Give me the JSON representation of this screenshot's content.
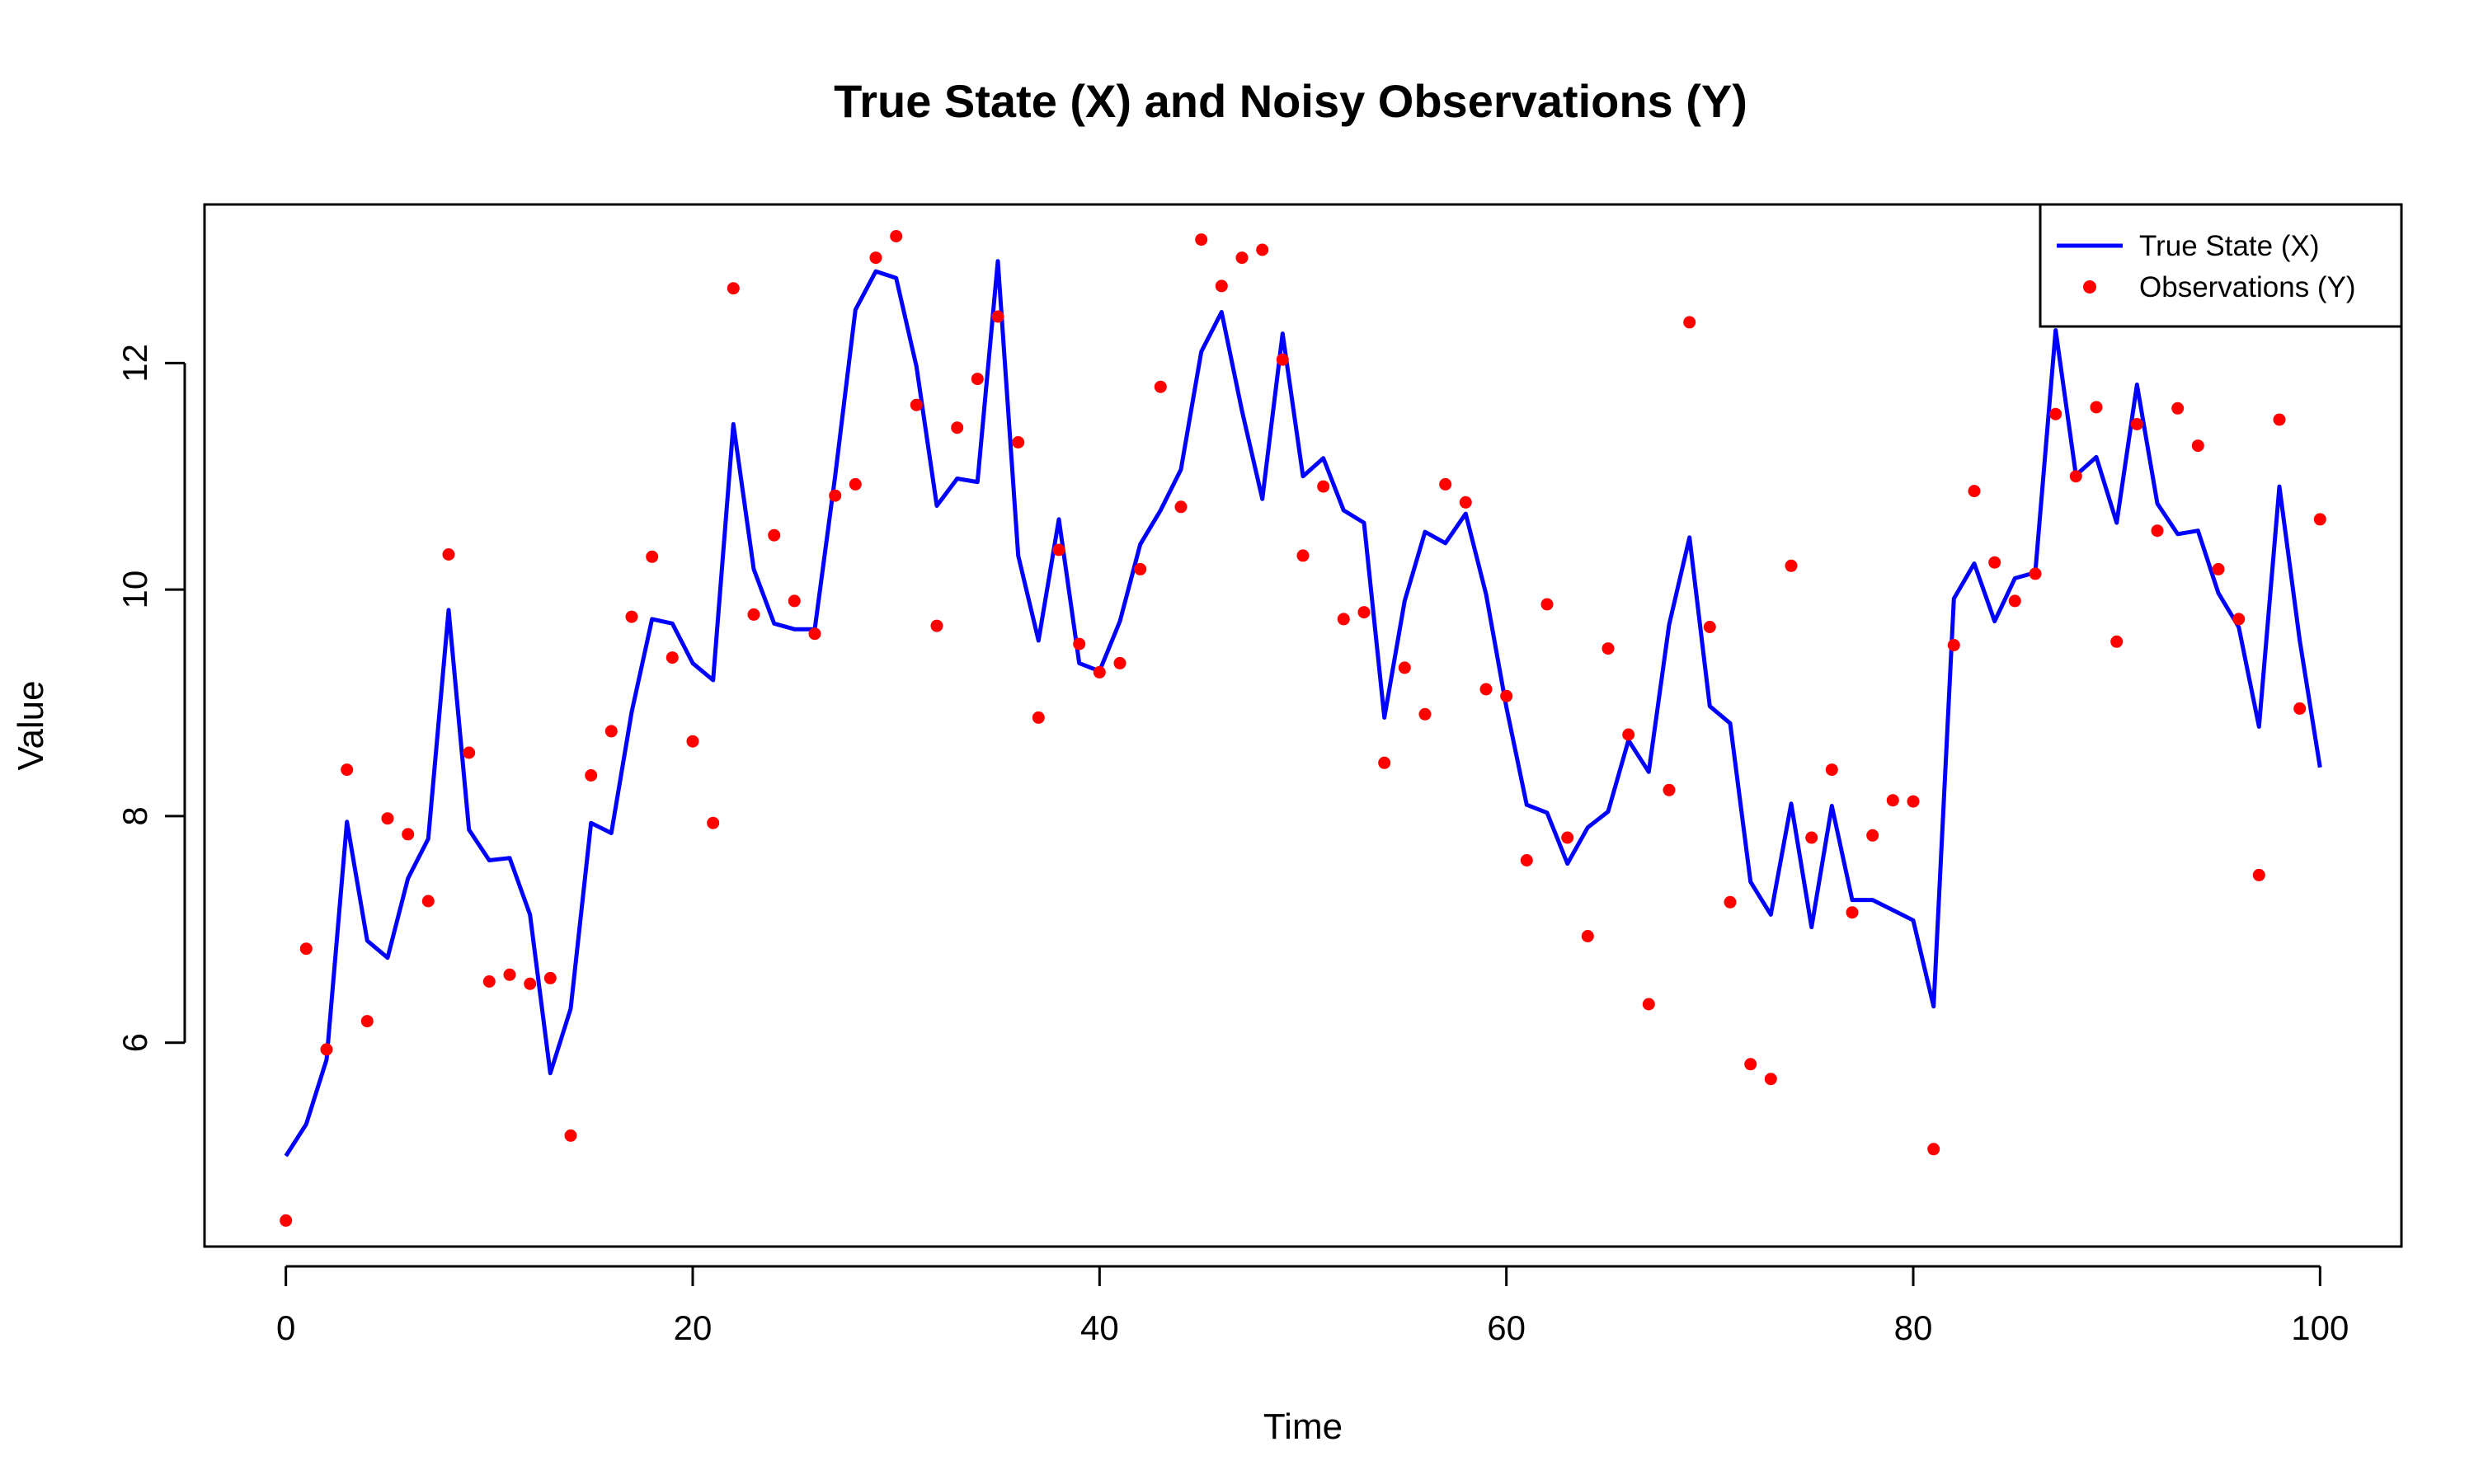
{
  "chart_data": {
    "type": "line",
    "title": "True State (X) and Noisy Observations (Y)",
    "xlabel": "Time",
    "ylabel": "Value",
    "xlim": [
      -4,
      104
    ],
    "ylim": [
      4.2,
      13.4
    ],
    "x_ticks": [
      0,
      20,
      40,
      60,
      80,
      100
    ],
    "y_ticks": [
      6,
      8,
      10,
      12
    ],
    "x_tick_labels": [
      "0",
      "20",
      "40",
      "60",
      "80",
      "100"
    ],
    "y_tick_labels": [
      "6",
      "8",
      "10",
      "12"
    ],
    "grid": false,
    "legend_position": "top-right",
    "x": [
      0,
      1,
      2,
      3,
      4,
      5,
      6,
      7,
      8,
      9,
      10,
      11,
      12,
      13,
      14,
      15,
      16,
      17,
      18,
      19,
      20,
      21,
      22,
      23,
      24,
      25,
      26,
      27,
      28,
      29,
      30,
      31,
      32,
      33,
      34,
      35,
      36,
      37,
      38,
      39,
      40,
      41,
      42,
      43,
      44,
      45,
      46,
      47,
      48,
      49,
      50,
      51,
      52,
      53,
      54,
      55,
      56,
      57,
      58,
      59,
      60,
      61,
      62,
      63,
      64,
      65,
      66,
      67,
      68,
      69,
      70,
      71,
      72,
      73,
      74,
      75,
      76,
      77,
      78,
      79,
      80,
      81,
      82,
      83,
      84,
      85,
      86,
      87,
      88,
      89,
      90,
      91,
      92,
      93,
      94,
      95,
      96,
      97,
      98,
      99,
      100
    ],
    "series": [
      {
        "name": "True State (X)",
        "kind": "line",
        "color": "#0000ff",
        "values": [
          5.0,
          5.28,
          5.85,
          7.95,
          6.9,
          6.75,
          7.45,
          7.8,
          9.82,
          7.88,
          7.61,
          7.63,
          7.13,
          5.73,
          6.3,
          7.94,
          7.85,
          8.92,
          9.74,
          9.7,
          9.35,
          9.2,
          11.46,
          10.18,
          9.7,
          9.65,
          9.65,
          11.0,
          12.47,
          12.81,
          12.75,
          11.97,
          10.74,
          10.98,
          10.95,
          12.9,
          10.3,
          9.55,
          10.62,
          9.35,
          9.28,
          9.72,
          10.4,
          10.7,
          11.06,
          12.1,
          12.45,
          11.58,
          10.8,
          12.26,
          11.0,
          11.16,
          10.7,
          10.59,
          8.87,
          9.9,
          10.51,
          10.41,
          10.67,
          9.96,
          8.96,
          8.1,
          8.03,
          7.58,
          7.9,
          8.04,
          8.67,
          8.39,
          9.69,
          10.46,
          8.97,
          8.82,
          7.42,
          7.13,
          8.11,
          7.02,
          8.09,
          7.26,
          7.26,
          7.17,
          7.08,
          6.32,
          9.92,
          10.23,
          9.72,
          10.1,
          10.15,
          12.29,
          11.01,
          11.17,
          10.59,
          11.81,
          10.76,
          10.49,
          10.52,
          9.97,
          9.67,
          8.79,
          10.91,
          9.55,
          8.43
        ]
      },
      {
        "name": "Observations (Y)",
        "kind": "points",
        "color": "#ff0000",
        "values": [
          4.43,
          6.83,
          5.94,
          8.41,
          6.19,
          7.98,
          7.84,
          7.25,
          10.31,
          8.56,
          6.54,
          6.6,
          6.52,
          6.57,
          5.18,
          8.36,
          8.75,
          9.76,
          10.29,
          9.4,
          8.66,
          7.94,
          12.66,
          9.78,
          10.48,
          9.9,
          9.61,
          10.83,
          10.93,
          12.93,
          13.12,
          11.63,
          9.68,
          11.43,
          11.86,
          12.41,
          11.3,
          8.87,
          10.35,
          9.52,
          9.27,
          9.35,
          10.18,
          11.79,
          10.73,
          13.09,
          12.68,
          12.93,
          13.0,
          12.03,
          10.3,
          10.91,
          9.74,
          9.8,
          8.47,
          9.31,
          8.9,
          10.93,
          10.77,
          9.12,
          9.06,
          7.61,
          9.87,
          7.81,
          6.94,
          9.48,
          8.72,
          6.34,
          8.23,
          12.36,
          9.67,
          7.24,
          5.81,
          5.68,
          10.21,
          7.81,
          8.41,
          7.15,
          7.83,
          8.14,
          8.13,
          5.06,
          9.51,
          10.87,
          10.24,
          9.9,
          10.14,
          11.55,
          11.0,
          11.61,
          9.54,
          11.46,
          10.52,
          11.6,
          11.27,
          10.18,
          9.74,
          7.48,
          11.5,
          8.95,
          10.62
        ]
      }
    ]
  }
}
